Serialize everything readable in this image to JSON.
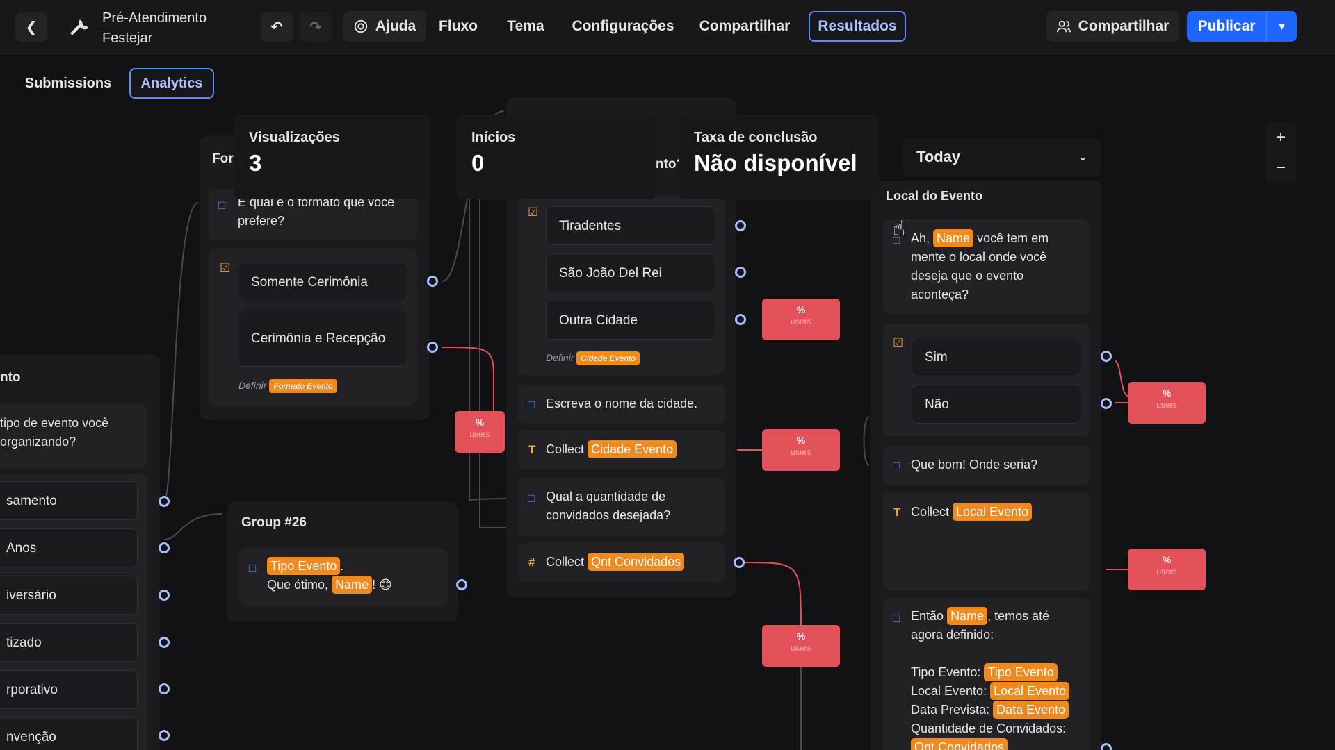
{
  "header": {
    "project_title": "Pré-Atendimento Festejar",
    "nav": {
      "ajuda": "Ajuda",
      "fluxo": "Fluxo",
      "tema": "Tema",
      "configuracoes": "Configurações",
      "compartilhar": "Compartilhar",
      "resultados": "Resultados"
    },
    "share_label": "Compartilhar",
    "publish_label": "Publicar"
  },
  "tabs": {
    "submissions": "Submissions",
    "analytics": "Analytics"
  },
  "stats": {
    "views_label": "Visualizações",
    "views_value": "3",
    "starts_label": "Inícios",
    "starts_value": "0",
    "completion_label": "Taxa de conclusão",
    "completion_value": "Não disponível"
  },
  "date_filter": "Today",
  "percent_badge": {
    "value": "%",
    "unit": "users"
  },
  "left_group": {
    "title_fragment": "nto",
    "question_line1": "tipo de evento você",
    "question_line2": "organizando?",
    "options": [
      "samento",
      "Anos",
      "iversário",
      "tizado",
      "rporativo",
      "nvenção"
    ]
  },
  "formato_group": {
    "title_fragment": "For",
    "question": "E qual é o formato que você prefere?",
    "options": [
      "Somente Cerimônia",
      "Cerimônia e Recepção"
    ],
    "definir": "Definir",
    "variable": "Formato Evento"
  },
  "group26": {
    "title": "Group #26",
    "tag_tipo": "Tipo Evento",
    "line2_prefix": "Que ótimo,",
    "tag_name": "Name",
    "line2_suffix": "! 😊"
  },
  "cidade_group": {
    "title_fragment": "nto?",
    "options": [
      "Tiradentes",
      "São João Del Rei",
      "Outra Cidade"
    ],
    "definir": "Definir",
    "variable": "Cidade Evento",
    "text1": "Escreva o nome da cidade.",
    "collect1_label": "Collect",
    "collect1_var": "Cidade Evento",
    "text2": "Qual a quantidade de convidados desejada?",
    "collect2_label": "Collect",
    "collect2_var": "Qnt Convidados"
  },
  "local_group": {
    "title": "Local do Evento",
    "msg_prefix": "Ah,",
    "msg_name": "Name",
    "msg_rest": "você tem em mente o local onde você deseja que o evento aconteça?",
    "options": [
      "Sim",
      "Não"
    ],
    "text_que_bom": "Que bom! Onde seria?",
    "collect_label": "Collect",
    "collect_var": "Local Evento",
    "summary_prefix": "Então",
    "summary_name": "Name",
    "summary_rest": ", temos até agora definido:",
    "tipo_label": "Tipo Evento:",
    "tipo_var": "Tipo Evento",
    "local_label": "Local Evento:",
    "local_var": "Local Evento",
    "data_label": "Data Prevista:",
    "data_var": "Data Evento",
    "qnt_label": "Quantidade de Convidados:",
    "qnt_var": "Qnt Convidados"
  }
}
